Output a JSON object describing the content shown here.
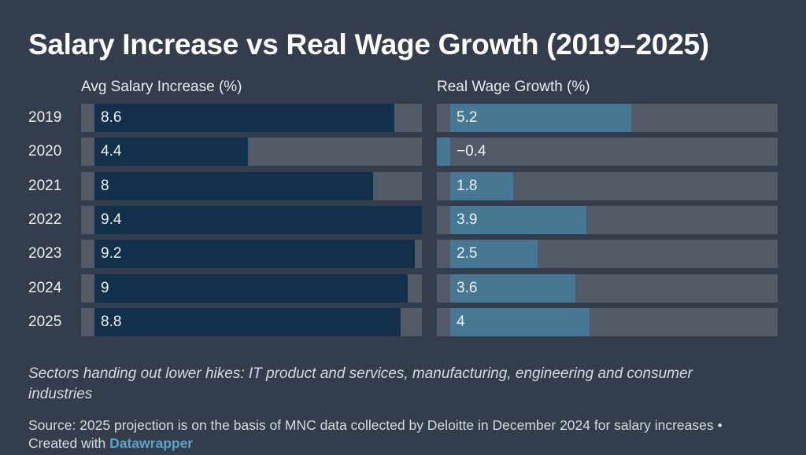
{
  "header": {
    "title": "Salary Increase vs Real Wage Growth (2019–2025)"
  },
  "chart_data": {
    "type": "bar",
    "orientation": "horizontal",
    "title": "Salary Increase vs Real Wage Growth (2019–2025)",
    "categories": [
      "2019",
      "2020",
      "2021",
      "2022",
      "2023",
      "2024",
      "2025"
    ],
    "xlim": [
      0,
      9.4
    ],
    "grid": false,
    "series": [
      {
        "name": "Avg Salary Increase (%)",
        "color": "#12304a",
        "values": [
          8.6,
          4.4,
          8,
          9.4,
          9.2,
          9,
          8.8
        ],
        "labels": [
          "8.6",
          "4.4",
          "8",
          "9.4",
          "9.2",
          "9",
          "8.8"
        ]
      },
      {
        "name": "Real Wage Growth (%)",
        "color": "#467893",
        "values": [
          5.2,
          -0.4,
          1.8,
          3.9,
          2.5,
          3.6,
          4
        ],
        "labels": [
          "5.2",
          "−0.4",
          "1.8",
          "3.9",
          "2.5",
          "3.6",
          "4"
        ]
      }
    ],
    "track_color": "#525a68"
  },
  "footer": {
    "note": "Sectors handing out lower hikes: IT product and services, manufacturing, engineering and consumer industries",
    "source_text": "Source: 2025 projection is on the basis of MNC data collected by Deloitte in December 2024 for salary increases • Created with ",
    "source_link": "Datawrapper"
  }
}
